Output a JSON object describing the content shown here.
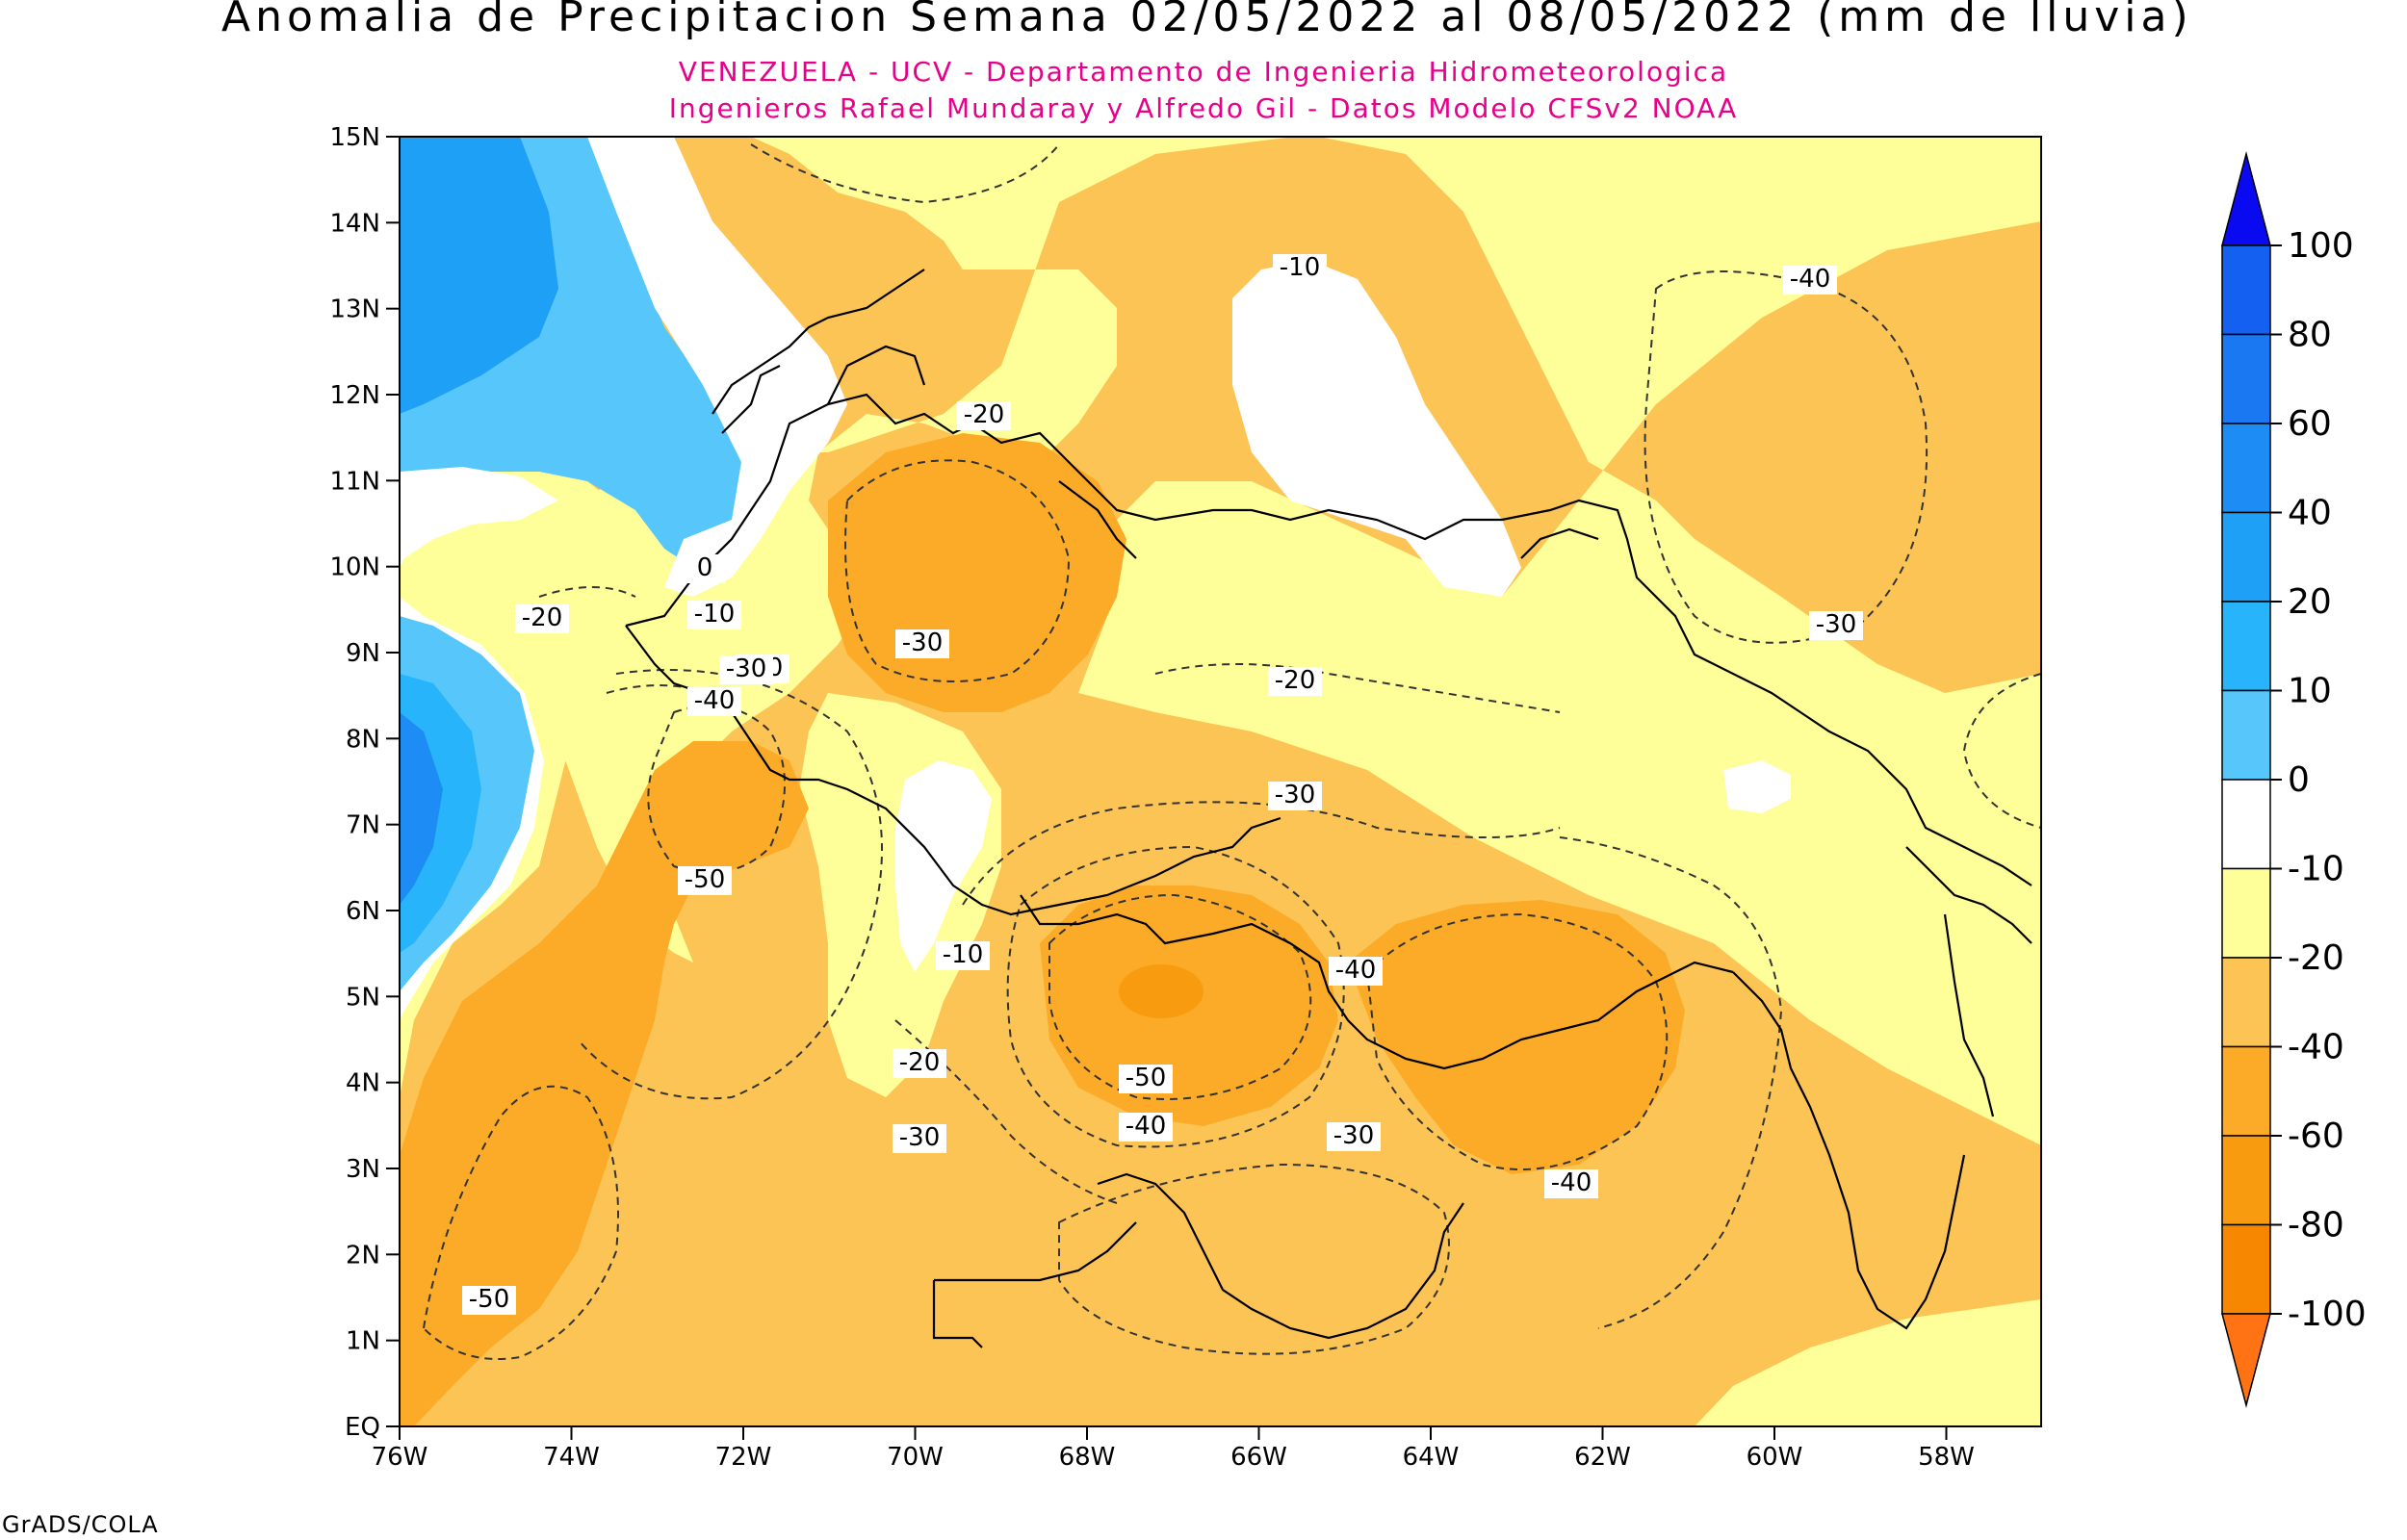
{
  "header": {
    "title": "Anomalia de Precipitacion Semana 02/05/2022 al 08/05/2022 (mm de lluvia)",
    "subtitle_1": "VENEZUELA - UCV - Departamento de Ingenieria Hidrometeorologica",
    "subtitle_2": "Ingenieros Rafael Mundaray y Alfredo Gil - Datos Modelo CFSv2 NOAA"
  },
  "footer": {
    "credit": "GrADS/COLA"
  },
  "map": {
    "lat_labels": [
      "EQ",
      "1N",
      "2N",
      "3N",
      "4N",
      "5N",
      "6N",
      "7N",
      "8N",
      "9N",
      "10N",
      "11N",
      "12N",
      "13N",
      "14N",
      "15N"
    ],
    "lon_labels": [
      "76W",
      "74W",
      "72W",
      "70W",
      "68W",
      "66W",
      "64W",
      "62W",
      "60W",
      "58W"
    ],
    "contour_labels": [
      "0",
      "-10",
      "-20",
      "-30",
      "-40",
      "-50",
      "-10",
      "-20",
      "-30",
      "-10",
      "-20",
      "-30",
      "-40",
      "-50",
      "-40",
      "-30",
      "-40",
      "-40",
      "-30",
      "-30",
      "-50",
      "-20",
      "-30"
    ]
  },
  "colorbar": {
    "labels": [
      "100",
      "80",
      "60",
      "40",
      "20",
      "10",
      "0",
      "-10",
      "-20",
      "-40",
      "-60",
      "-80",
      "-100"
    ],
    "colors": [
      "#0a0af0",
      "#1460f0",
      "#1a78f2",
      "#1e8cf5",
      "#1ea0f7",
      "#28b4fa",
      "#56c6fb",
      "#ffffff",
      "#ffff9a",
      "#fcc454",
      "#fbab28",
      "#f99b0e",
      "#f78700",
      "#ff7314"
    ]
  }
}
